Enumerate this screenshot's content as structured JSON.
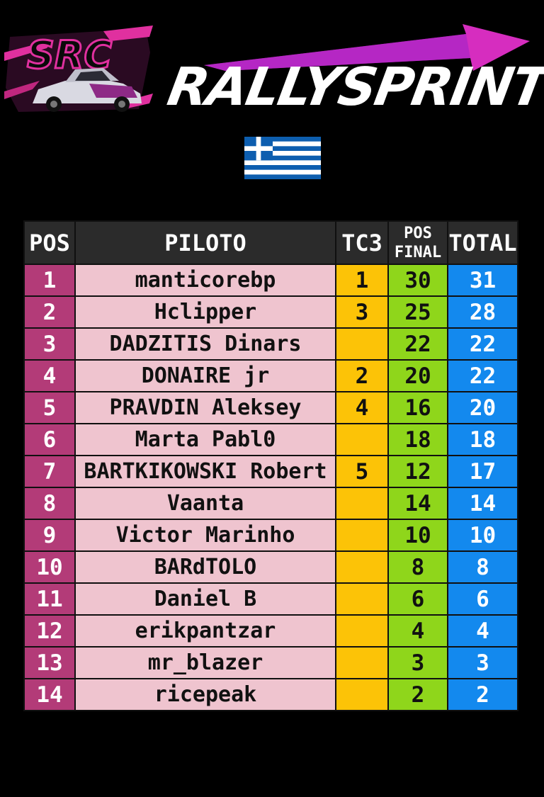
{
  "brand": {
    "badge_text": "SRC",
    "title": "RALLYSPRINT",
    "accent": "#e0309f"
  },
  "flag": {
    "country_icon": "greece-flag-icon",
    "blue": "#0d5eaf"
  },
  "table": {
    "headers": {
      "pos": "POS",
      "pilot": "PILOTO",
      "tc3": "TC3",
      "final_top": "POS",
      "final_bottom": "FINAL",
      "total": "TOTAL"
    },
    "colors": {
      "pos": "#b33b78",
      "pilot": "#efc4cf",
      "tc3": "#fcc307",
      "final": "#8fd61b",
      "total": "#1389ee"
    },
    "rows": [
      {
        "pos": "1",
        "pilot": "manticorebp",
        "tc3": "1",
        "final": "30",
        "total": "31"
      },
      {
        "pos": "2",
        "pilot": "Hclipper",
        "tc3": "3",
        "final": "25",
        "total": "28"
      },
      {
        "pos": "3",
        "pilot": "DADZITIS Dinars",
        "tc3": "",
        "final": "22",
        "total": "22"
      },
      {
        "pos": "4",
        "pilot": "DONAIRE jr",
        "tc3": "2",
        "final": "20",
        "total": "22"
      },
      {
        "pos": "5",
        "pilot": "PRAVDIN Aleksey",
        "tc3": "4",
        "final": "16",
        "total": "20"
      },
      {
        "pos": "6",
        "pilot": "Marta Pabl0",
        "tc3": "",
        "final": "18",
        "total": "18"
      },
      {
        "pos": "7",
        "pilot": "BARTKIKOWSKI Robert",
        "tc3": "5",
        "final": "12",
        "total": "17"
      },
      {
        "pos": "8",
        "pilot": "Vaanta",
        "tc3": "",
        "final": "14",
        "total": "14"
      },
      {
        "pos": "9",
        "pilot": "Victor Marinho",
        "tc3": "",
        "final": "10",
        "total": "10"
      },
      {
        "pos": "10",
        "pilot": "BARdTOLO",
        "tc3": "",
        "final": "8",
        "total": "8"
      },
      {
        "pos": "11",
        "pilot": "Daniel B",
        "tc3": "",
        "final": "6",
        "total": "6"
      },
      {
        "pos": "12",
        "pilot": "erikpantzar",
        "tc3": "",
        "final": "4",
        "total": "4"
      },
      {
        "pos": "13",
        "pilot": "mr_blazer",
        "tc3": "",
        "final": "3",
        "total": "3"
      },
      {
        "pos": "14",
        "pilot": "ricepeak",
        "tc3": "",
        "final": "2",
        "total": "2"
      }
    ]
  }
}
